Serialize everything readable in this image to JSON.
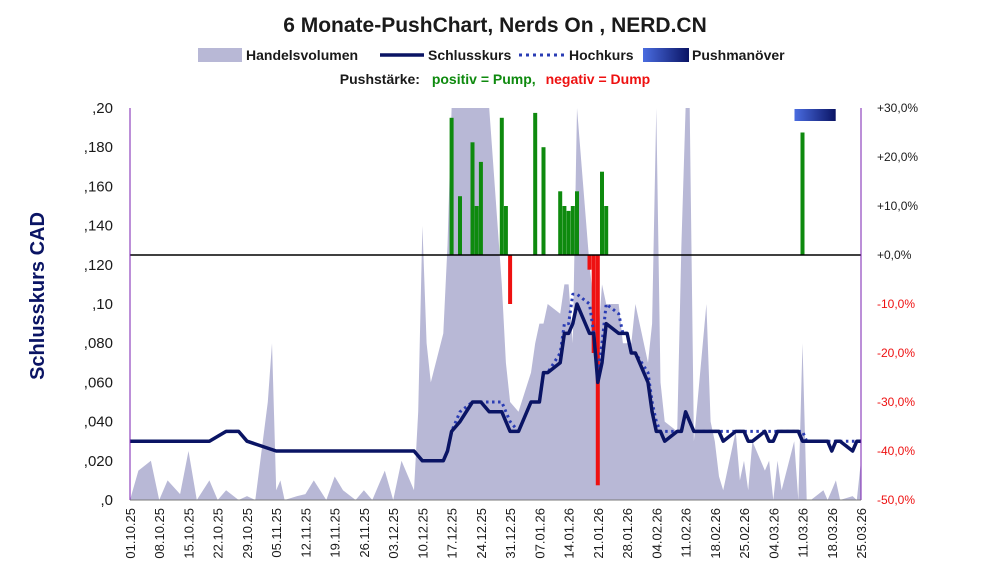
{
  "chart_data": {
    "type": "line",
    "title": "6 Monate-PushChart, Nerds On , NERD.CN",
    "legend": [
      "Handelsvolumen",
      "Schlusskurs",
      "Hochkurs",
      "Pushmanöver"
    ],
    "legend_placement": "top",
    "subtitle_label": "Pushstärke:",
    "subtitle_positive": "positiv = Pump,",
    "subtitle_negative": "negativ = Dump",
    "ylabel": "Schlusskurs CAD",
    "ylim": [
      0,
      0.2
    ],
    "y_ticks": [
      ",0",
      ",020",
      ",040",
      ",060",
      ",080",
      ",10",
      ",120",
      ",140",
      ",160",
      ",180",
      ",20"
    ],
    "y2lim": [
      -50,
      30
    ],
    "y2_ticks": [
      "-50,0%",
      "-40,0%",
      "-30,0%",
      "-20,0%",
      "-10,0%",
      "+0,0%",
      "+10,0%",
      "+20,0%",
      "+30,0%"
    ],
    "x_range": [
      "01.10.25",
      "25.03.26"
    ],
    "x_ticks": [
      "01.10.25",
      "08.10.25",
      "15.10.25",
      "22.10.25",
      "29.10.25",
      "05.11.25",
      "12.11.25",
      "19.11.25",
      "26.11.25",
      "03.12.25",
      "10.12.25",
      "17.12.25",
      "24.12.25",
      "31.12.25",
      "07.01.26",
      "14.01.26",
      "21.01.26",
      "28.01.26",
      "04.02.26",
      "11.02.26",
      "18.02.26",
      "25.02.26",
      "04.03.26",
      "11.03.26",
      "18.03.26",
      "25.03.26"
    ],
    "colors": {
      "volume": "#b8b8d6",
      "close": "#0a1464",
      "high": "#2a3cb4",
      "pump": "#0e8a0e",
      "dump": "#ee1111",
      "zero_line": "#000000",
      "right_axis": "#7a1fb0",
      "push_gradient": [
        "#4a6ce0",
        "#0a1464"
      ]
    },
    "series": [
      {
        "name": "Schlusskurs",
        "x": [
          "01.10.25",
          "08.10.25",
          "15.10.25",
          "20.10.25",
          "24.10.25",
          "27.10.25",
          "29.10.25",
          "05.11.25",
          "12.11.25",
          "19.11.25",
          "26.11.25",
          "03.12.25",
          "08.12.25",
          "10.12.25",
          "12.12.25",
          "15.12.25",
          "16.12.25",
          "17.12.25",
          "19.12.25",
          "22.12.25",
          "23.12.25",
          "24.12.25",
          "26.12.25",
          "29.12.25",
          "30.12.25",
          "31.12.25",
          "02.01.26",
          "05.01.26",
          "06.01.26",
          "07.01.26",
          "08.01.26",
          "09.01.26",
          "12.01.26",
          "13.01.26",
          "14.01.26",
          "15.01.26",
          "16.01.26",
          "19.01.26",
          "20.01.26",
          "21.01.26",
          "22.01.26",
          "23.01.26",
          "26.01.26",
          "27.01.26",
          "28.01.26",
          "29.01.26",
          "30.01.26",
          "02.02.26",
          "03.02.26",
          "04.02.26",
          "05.02.26",
          "06.02.26",
          "09.02.26",
          "10.02.26",
          "11.02.26",
          "12.02.26",
          "13.02.26",
          "16.02.26",
          "17.02.26",
          "18.02.26",
          "19.02.26",
          "20.02.26",
          "23.02.26",
          "24.02.26",
          "25.02.26",
          "26.02.26",
          "27.02.26",
          "02.03.26",
          "03.03.26",
          "04.03.26",
          "05.03.26",
          "06.03.26",
          "09.03.26",
          "10.03.26",
          "11.03.26",
          "12.03.26",
          "13.03.26",
          "16.03.26",
          "17.03.26",
          "18.03.26",
          "19.03.26",
          "20.03.26",
          "23.03.26",
          "24.03.26",
          "25.03.26"
        ],
        "values": [
          0.03,
          0.03,
          0.03,
          0.03,
          0.035,
          0.035,
          0.03,
          0.025,
          0.025,
          0.025,
          0.025,
          0.025,
          0.025,
          0.02,
          0.02,
          0.02,
          0.025,
          0.035,
          0.04,
          0.05,
          0.05,
          0.05,
          0.045,
          0.045,
          0.04,
          0.035,
          0.035,
          0.05,
          0.05,
          0.05,
          0.065,
          0.065,
          0.07,
          0.085,
          0.085,
          0.09,
          0.1,
          0.085,
          0.085,
          0.06,
          0.07,
          0.09,
          0.085,
          0.085,
          0.085,
          0.075,
          0.075,
          0.06,
          0.045,
          0.035,
          0.035,
          0.03,
          0.035,
          0.035,
          0.045,
          0.04,
          0.035,
          0.035,
          0.035,
          0.035,
          0.035,
          0.03,
          0.035,
          0.035,
          0.035,
          0.03,
          0.03,
          0.035,
          0.03,
          0.03,
          0.035,
          0.035,
          0.035,
          0.035,
          0.03,
          0.03,
          0.03,
          0.03,
          0.03,
          0.025,
          0.03,
          0.03,
          0.025,
          0.03,
          0.03
        ]
      },
      {
        "name": "Hochkurs",
        "x": [
          "01.10.25",
          "08.10.25",
          "15.10.25",
          "20.10.25",
          "24.10.25",
          "27.10.25",
          "29.10.25",
          "05.11.25",
          "12.11.25",
          "19.11.25",
          "26.11.25",
          "03.12.25",
          "08.12.25",
          "10.12.25",
          "12.12.25",
          "15.12.25",
          "16.12.25",
          "17.12.25",
          "19.12.25",
          "22.12.25",
          "23.12.25",
          "24.12.25",
          "26.12.25",
          "29.12.25",
          "30.12.25",
          "31.12.25",
          "02.01.26",
          "05.01.26",
          "06.01.26",
          "07.01.26",
          "08.01.26",
          "09.01.26",
          "12.01.26",
          "13.01.26",
          "14.01.26",
          "15.01.26",
          "16.01.26",
          "19.01.26",
          "20.01.26",
          "21.01.26",
          "22.01.26",
          "23.01.26",
          "26.01.26",
          "27.01.26",
          "28.01.26",
          "29.01.26",
          "30.01.26",
          "02.02.26",
          "03.02.26",
          "04.02.26",
          "05.02.26",
          "06.02.26",
          "09.02.26",
          "10.02.26",
          "11.02.26",
          "12.02.26",
          "13.02.26",
          "16.02.26",
          "17.02.26",
          "18.02.26",
          "19.02.26",
          "20.02.26",
          "23.02.26",
          "24.02.26",
          "25.02.26",
          "26.02.26",
          "27.02.26",
          "02.03.26",
          "03.03.26",
          "04.03.26",
          "05.03.26",
          "06.03.26",
          "09.03.26",
          "10.03.26",
          "11.03.26",
          "12.03.26",
          "13.03.26",
          "16.03.26",
          "17.03.26",
          "18.03.26",
          "19.03.26",
          "20.03.26",
          "23.03.26",
          "24.03.26",
          "25.03.26"
        ],
        "values": [
          0.03,
          0.03,
          0.03,
          0.03,
          0.035,
          0.035,
          0.03,
          0.025,
          0.025,
          0.025,
          0.025,
          0.025,
          0.025,
          0.02,
          0.02,
          0.02,
          0.025,
          0.035,
          0.045,
          0.05,
          0.05,
          0.05,
          0.05,
          0.05,
          0.045,
          0.04,
          0.035,
          0.05,
          0.05,
          0.05,
          0.065,
          0.065,
          0.075,
          0.09,
          0.09,
          0.105,
          0.105,
          0.1,
          0.085,
          0.065,
          0.08,
          0.1,
          0.095,
          0.085,
          0.085,
          0.075,
          0.075,
          0.065,
          0.05,
          0.04,
          0.035,
          0.035,
          0.035,
          0.035,
          0.045,
          0.04,
          0.035,
          0.035,
          0.035,
          0.035,
          0.035,
          0.035,
          0.035,
          0.035,
          0.035,
          0.035,
          0.035,
          0.035,
          0.035,
          0.035,
          0.035,
          0.035,
          0.035,
          0.035,
          0.035,
          0.03,
          0.03,
          0.03,
          0.03,
          0.03,
          0.03,
          0.03,
          0.03,
          0.03,
          0.03
        ]
      },
      {
        "name": "Handelsvolumen",
        "x": [
          "01.10.25",
          "03.10.25",
          "06.10.25",
          "08.10.25",
          "10.10.25",
          "13.10.25",
          "15.10.25",
          "17.10.25",
          "20.10.25",
          "22.10.25",
          "24.10.25",
          "27.10.25",
          "29.10.25",
          "31.10.25",
          "03.11.25",
          "04.11.25",
          "05.11.25",
          "06.11.25",
          "07.11.25",
          "10.11.25",
          "12.11.25",
          "14.11.25",
          "17.11.25",
          "19.11.25",
          "21.11.25",
          "24.11.25",
          "26.11.25",
          "28.11.25",
          "01.12.25",
          "03.12.25",
          "05.12.25",
          "08.12.25",
          "09.12.25",
          "10.12.25",
          "11.12.25",
          "12.12.25",
          "15.12.25",
          "16.12.25",
          "17.12.25",
          "18.12.25",
          "19.12.25",
          "22.12.25",
          "23.12.25",
          "24.12.25",
          "26.12.25",
          "29.12.25",
          "30.12.25",
          "31.12.25",
          "02.01.26",
          "05.01.26",
          "06.01.26",
          "07.01.26",
          "08.01.26",
          "09.01.26",
          "12.01.26",
          "13.01.26",
          "14.01.26",
          "15.01.26",
          "16.01.26",
          "19.01.26",
          "20.01.26",
          "21.01.26",
          "22.01.26",
          "23.01.26",
          "26.01.26",
          "27.01.26",
          "28.01.26",
          "29.01.26",
          "30.01.26",
          "02.02.26",
          "03.02.26",
          "04.02.26",
          "05.02.26",
          "06.02.26",
          "09.02.26",
          "10.02.26",
          "11.02.26",
          "12.02.26",
          "13.02.26",
          "16.02.26",
          "17.02.26",
          "18.02.26",
          "19.02.26",
          "20.02.26",
          "23.02.26",
          "24.02.26",
          "25.02.26",
          "26.02.26",
          "27.02.26",
          "02.03.26",
          "03.03.26",
          "04.03.26",
          "05.03.26",
          "06.03.26",
          "09.03.26",
          "10.03.26",
          "11.03.26",
          "12.03.26",
          "13.03.26",
          "16.03.26",
          "17.03.26",
          "18.03.26",
          "19.03.26",
          "20.03.26",
          "23.03.26",
          "24.03.26",
          "25.03.26"
        ],
        "values": [
          0.0,
          0.015,
          0.02,
          0.0,
          0.01,
          0.003,
          0.025,
          0.0,
          0.01,
          0.0,
          0.005,
          0.0,
          0.002,
          0.0,
          0.05,
          0.08,
          0.005,
          0.01,
          0.0,
          0.002,
          0.003,
          0.01,
          0.0,
          0.012,
          0.005,
          0.0,
          0.005,
          0.0,
          0.015,
          0.0,
          0.02,
          0.005,
          0.045,
          0.14,
          0.08,
          0.06,
          0.085,
          0.13,
          0.2,
          0.2,
          0.2,
          0.2,
          0.2,
          0.2,
          0.2,
          0.11,
          0.07,
          0.05,
          0.045,
          0.065,
          0.08,
          0.09,
          0.09,
          0.1,
          0.095,
          0.11,
          0.11,
          0.08,
          0.2,
          0.12,
          0.1,
          0.08,
          0.11,
          0.1,
          0.1,
          0.08,
          0.08,
          0.08,
          0.1,
          0.07,
          0.09,
          0.2,
          0.06,
          0.04,
          0.035,
          0.13,
          0.2,
          0.2,
          0.03,
          0.1,
          0.04,
          0.03,
          0.012,
          0.005,
          0.035,
          0.01,
          0.02,
          0.005,
          0.03,
          0.015,
          0.02,
          0.0,
          0.02,
          0.005,
          0.03,
          0.0,
          0.08,
          0.0,
          0.0,
          0.005,
          0.0,
          0.005,
          0.01,
          0.0,
          0.002,
          0.0,
          0.02
        ]
      },
      {
        "name": "Pushstärke",
        "axis": "right",
        "unit": "%",
        "x": [
          "17.12.25",
          "19.12.25",
          "22.12.25",
          "23.12.25",
          "24.12.25",
          "29.12.25",
          "30.12.25",
          "31.12.25",
          "06.01.26",
          "08.01.26",
          "12.01.26",
          "13.01.26",
          "14.01.26",
          "15.01.26",
          "16.01.26",
          "19.01.26",
          "20.01.26",
          "21.01.26",
          "22.01.26",
          "23.01.26",
          "11.03.26"
        ],
        "values": [
          28,
          12,
          23,
          10,
          19,
          28,
          10,
          -10,
          29,
          22,
          13,
          10,
          9,
          10,
          13,
          -3,
          -20,
          -47,
          17,
          10,
          25
        ]
      }
    ]
  }
}
